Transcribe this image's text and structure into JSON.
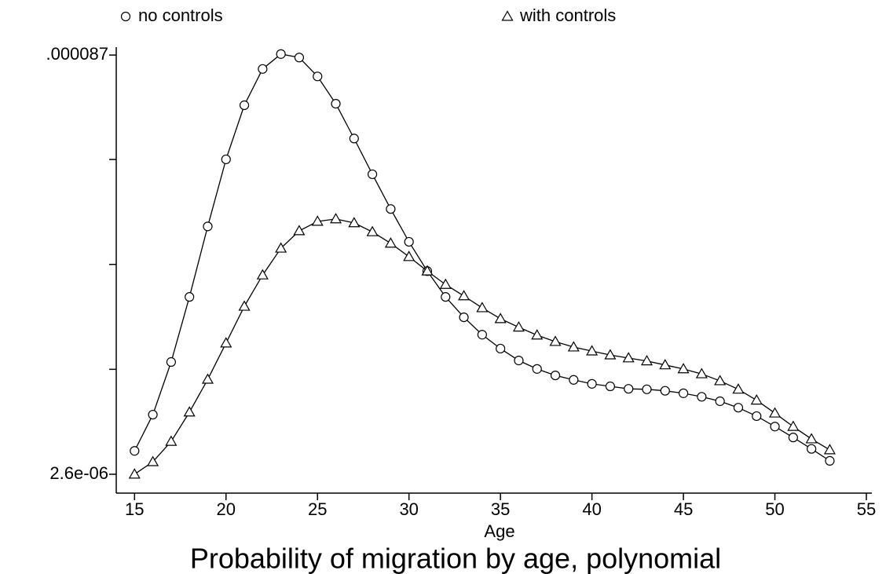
{
  "chart_data": {
    "type": "line",
    "title": "Probability of migration by age, polynomial",
    "x_label": "Age",
    "x": [
      15,
      16,
      17,
      18,
      19,
      20,
      21,
      22,
      23,
      24,
      25,
      26,
      27,
      28,
      29,
      30,
      31,
      32,
      33,
      34,
      35,
      36,
      37,
      38,
      39,
      40,
      41,
      42,
      43,
      44,
      45,
      46,
      47,
      48,
      49,
      50,
      51,
      52,
      53
    ],
    "series": [
      {
        "name": "no controls",
        "marker": "circle",
        "color": "#000000",
        "values": [
          7.3e-06,
          1.46e-05,
          2.52e-05,
          3.83e-05,
          5.25e-05,
          6.6e-05,
          7.69e-05,
          8.42e-05,
          8.72e-05,
          8.65e-05,
          8.27e-05,
          7.72e-05,
          7.02e-05,
          6.3e-05,
          5.6e-05,
          4.94e-05,
          4.35e-05,
          3.83e-05,
          3.42e-05,
          3.07e-05,
          2.79e-05,
          2.55e-05,
          2.38e-05,
          2.25e-05,
          2.16e-05,
          2.08e-05,
          2.03e-05,
          1.98e-05,
          1.97e-05,
          1.94e-05,
          1.89e-05,
          1.82e-05,
          1.73e-05,
          1.6e-05,
          1.43e-05,
          1.22e-05,
          1e-05,
          7.7e-06,
          5.3e-06
        ]
      },
      {
        "name": "with controls",
        "marker": "triangle",
        "color": "#000000",
        "values": [
          2.6e-06,
          5.1e-06,
          9.2e-06,
          1.51e-05,
          2.17e-05,
          2.9e-05,
          3.64e-05,
          4.27e-05,
          4.81e-05,
          5.16e-05,
          5.35e-05,
          5.4e-05,
          5.32e-05,
          5.14e-05,
          4.91e-05,
          4.64e-05,
          4.35e-05,
          4.08e-05,
          3.85e-05,
          3.61e-05,
          3.39e-05,
          3.22e-05,
          3.06e-05,
          2.93e-05,
          2.82e-05,
          2.74e-05,
          2.66e-05,
          2.6e-05,
          2.54e-05,
          2.46e-05,
          2.38e-05,
          2.28e-05,
          2.14e-05,
          1.97e-05,
          1.75e-05,
          1.49e-05,
          1.22e-05,
          9.7e-06,
          7.5e-06
        ]
      }
    ],
    "xlim": [
      14,
      55.3
    ],
    "xticks": [
      15,
      20,
      25,
      30,
      35,
      40,
      45,
      50,
      55
    ],
    "ylim": [
      -1.2e-06,
      8.86e-05
    ],
    "yticks": [
      {
        "value": 2.6e-06,
        "label": "2.6e-06"
      },
      {
        "value": 2.3725e-05,
        "label": null
      },
      {
        "value": 4.485e-05,
        "label": null
      },
      {
        "value": 6.5975e-05,
        "label": null
      },
      {
        "value": 8.7e-05,
        "label": ".000087"
      }
    ],
    "grid": false,
    "legend": "top"
  }
}
